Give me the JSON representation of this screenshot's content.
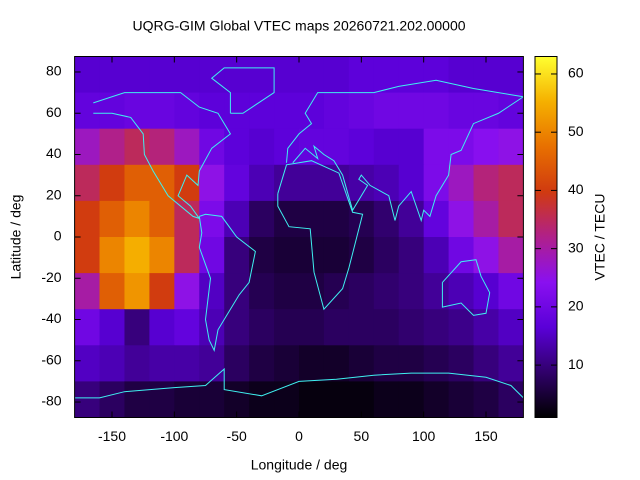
{
  "chart_data": {
    "type": "heatmap",
    "title": "UQRG-GIM Global VTEC maps 20260721.202.00000",
    "x_label": "Longitude / deg",
    "y_label": "Latitude / deg",
    "colorbar_label": "VTEC / TECU",
    "x": [
      -170,
      -150,
      -130,
      -110,
      -90,
      -70,
      -50,
      -30,
      -10,
      10,
      30,
      50,
      70,
      90,
      110,
      130,
      150,
      170
    ],
    "y": [
      78.75,
      61.25,
      43.75,
      26.25,
      8.75,
      -8.75,
      -26.25,
      -43.75,
      -61.25,
      -78.75
    ],
    "z": [
      [
        16,
        16,
        16,
        16,
        16,
        16,
        16,
        16,
        16,
        16,
        16,
        17,
        17,
        17,
        17,
        16,
        16,
        16
      ],
      [
        18,
        18,
        19,
        19,
        18,
        17,
        17,
        17,
        17,
        17,
        18,
        19,
        20,
        20,
        20,
        19,
        19,
        18
      ],
      [
        28,
        32,
        35,
        33,
        28,
        20,
        17,
        16,
        17,
        18,
        18,
        17,
        16,
        16,
        22,
        22,
        24,
        25
      ],
      [
        35,
        40,
        45,
        45,
        40,
        25,
        18,
        14,
        12,
        12,
        12,
        13,
        14,
        16,
        22,
        28,
        33,
        35
      ],
      [
        40,
        45,
        50,
        45,
        35,
        22,
        14,
        8,
        6,
        6,
        6,
        7,
        9,
        12,
        18,
        25,
        30,
        35
      ],
      [
        40,
        50,
        55,
        50,
        35,
        20,
        10,
        6,
        5,
        5,
        5,
        6,
        8,
        10,
        14,
        20,
        25,
        30
      ],
      [
        30,
        45,
        52,
        40,
        25,
        15,
        10,
        7,
        6,
        6,
        7,
        8,
        9,
        10,
        12,
        14,
        16,
        20
      ],
      [
        20,
        16,
        10,
        16,
        18,
        14,
        10,
        8,
        7,
        7,
        8,
        8,
        8,
        9,
        10,
        11,
        13,
        15
      ],
      [
        15,
        14,
        12,
        13,
        13,
        12,
        8,
        6,
        5,
        4,
        4,
        5,
        6,
        6,
        7,
        8,
        10,
        12
      ],
      [
        10,
        8,
        6,
        6,
        5,
        5,
        4,
        3,
        3,
        2,
        2,
        2,
        3,
        3,
        4,
        5,
        6,
        8
      ]
    ],
    "xlim": [
      -180,
      180
    ],
    "ylim": [
      -87.5,
      87.5
    ],
    "xticks": [
      -150,
      -100,
      -50,
      0,
      50,
      100,
      150
    ],
    "yticks": [
      -80,
      -60,
      -40,
      -20,
      0,
      20,
      40,
      60,
      80
    ],
    "zlim": [
      1,
      63
    ],
    "zticks": [
      10,
      20,
      30,
      40,
      50,
      60
    ],
    "colormap": [
      "#000000",
      "#30006a",
      "#5a00d8",
      "#8a10f0",
      "#b0208a",
      "#d03a10",
      "#e87000",
      "#f5b000",
      "#ffff30"
    ]
  }
}
